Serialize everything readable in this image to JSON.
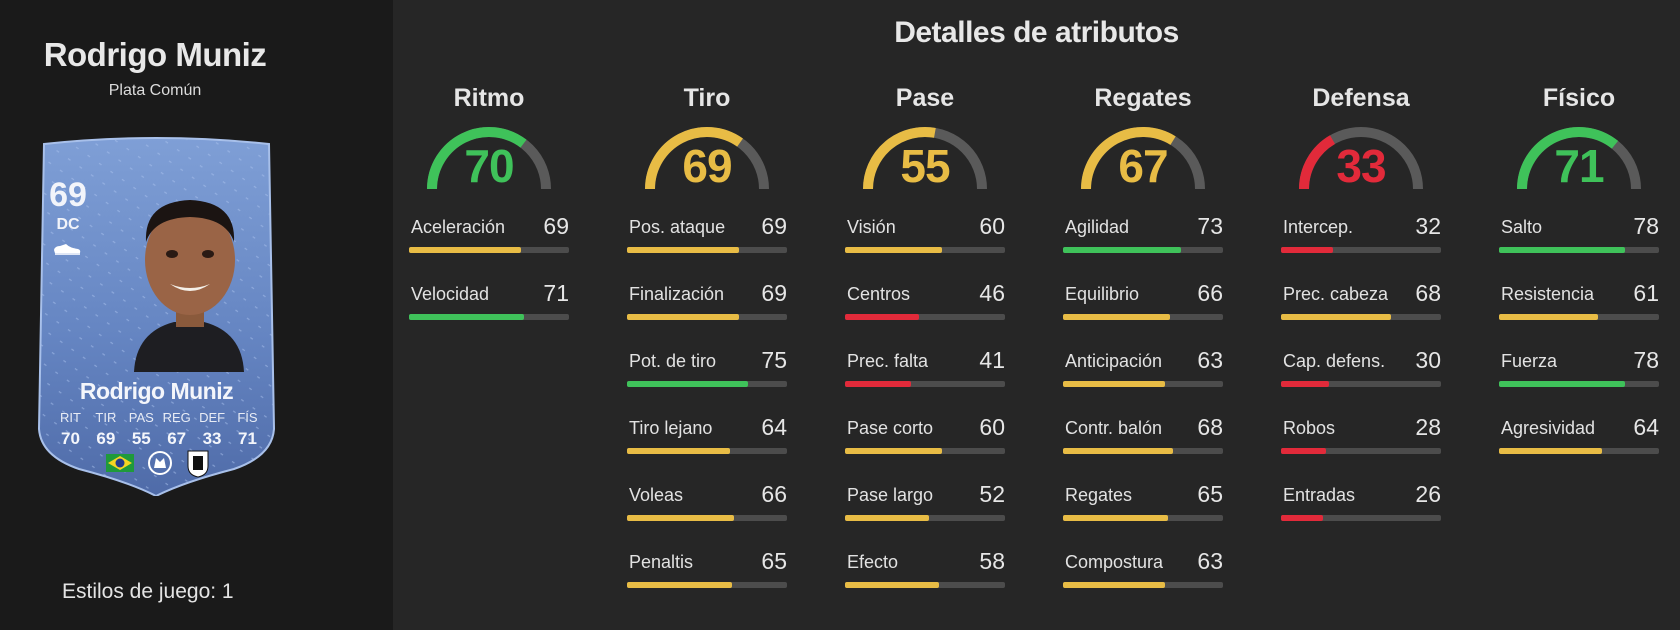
{
  "player": {
    "name": "Rodrigo Muniz",
    "rarity": "Plata Común",
    "card": {
      "overall": "69",
      "position": "DC",
      "name": "Rodrigo Muniz",
      "mini_stats": [
        {
          "key": "RIT",
          "value": "70"
        },
        {
          "key": "TIR",
          "value": "69"
        },
        {
          "key": "PAS",
          "value": "55"
        },
        {
          "key": "REG",
          "value": "67"
        },
        {
          "key": "DEF",
          "value": "33"
        },
        {
          "key": "FÍS",
          "value": "71"
        }
      ],
      "badges": [
        "brazil-flag-icon",
        "premier-league-icon",
        "fulham-crest-icon"
      ],
      "boot_icon": "boot-icon"
    },
    "play_styles": "Estilos de juego: 1"
  },
  "title": "Detalles de atributos",
  "colors": {
    "high": "#3fc25a",
    "mid": "#e8bc45",
    "low": "#e22a3a",
    "track": "#4c4c4c"
  },
  "categories": [
    {
      "name": "Ritmo",
      "value": 70,
      "stats": [
        {
          "label": "Aceleración",
          "value": 69
        },
        {
          "label": "Velocidad",
          "value": 71
        }
      ]
    },
    {
      "name": "Tiro",
      "value": 69,
      "stats": [
        {
          "label": "Pos. ataque",
          "value": 69
        },
        {
          "label": "Finalización",
          "value": 69
        },
        {
          "label": "Pot. de tiro",
          "value": 75
        },
        {
          "label": "Tiro lejano",
          "value": 64
        },
        {
          "label": "Voleas",
          "value": 66
        },
        {
          "label": "Penaltis",
          "value": 65
        }
      ]
    },
    {
      "name": "Pase",
      "value": 55,
      "stats": [
        {
          "label": "Visión",
          "value": 60
        },
        {
          "label": "Centros",
          "value": 46
        },
        {
          "label": "Prec. falta",
          "value": 41
        },
        {
          "label": "Pase corto",
          "value": 60
        },
        {
          "label": "Pase largo",
          "value": 52
        },
        {
          "label": "Efecto",
          "value": 58
        }
      ]
    },
    {
      "name": "Regates",
      "value": 67,
      "stats": [
        {
          "label": "Agilidad",
          "value": 73
        },
        {
          "label": "Equilibrio",
          "value": 66
        },
        {
          "label": "Anticipación",
          "value": 63
        },
        {
          "label": "Contr. balón",
          "value": 68
        },
        {
          "label": "Regates",
          "value": 65
        },
        {
          "label": "Compostura",
          "value": 63
        }
      ]
    },
    {
      "name": "Defensa",
      "value": 33,
      "stats": [
        {
          "label": "Intercep.",
          "value": 32
        },
        {
          "label": "Prec. cabeza",
          "value": 68
        },
        {
          "label": "Cap. defens.",
          "value": 30
        },
        {
          "label": "Robos",
          "value": 28
        },
        {
          "label": "Entradas",
          "value": 26
        }
      ]
    },
    {
      "name": "Físico",
      "value": 71,
      "stats": [
        {
          "label": "Salto",
          "value": 78
        },
        {
          "label": "Resistencia",
          "value": 61
        },
        {
          "label": "Fuerza",
          "value": 78
        },
        {
          "label": "Agresividad",
          "value": 64
        }
      ]
    }
  ]
}
